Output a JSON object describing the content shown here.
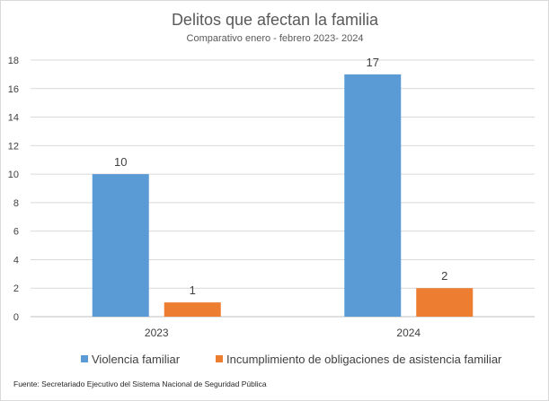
{
  "chart_data": {
    "type": "bar",
    "title": "Delitos que afectan la familia",
    "subtitle": "Comparativo enero - febrero 2023- 2024",
    "categories": [
      "2023",
      "2024"
    ],
    "series": [
      {
        "name": "Violencia familiar",
        "values": [
          10,
          17
        ],
        "color": "#5b9bd5"
      },
      {
        "name": "Incumplimiento de obligaciones de asistencia familiar",
        "values": [
          1,
          2
        ],
        "color": "#ed7d31"
      }
    ],
    "ylim": [
      0,
      18
    ],
    "yticks": [
      0,
      2,
      4,
      6,
      8,
      10,
      12,
      14,
      16,
      18
    ],
    "grid": true,
    "legend_position": "bottom",
    "xlabel": "",
    "ylabel": ""
  },
  "source_note": "Fuente: Secretariado Ejecutivo del Sistema Nacional de Seguridad Pública"
}
